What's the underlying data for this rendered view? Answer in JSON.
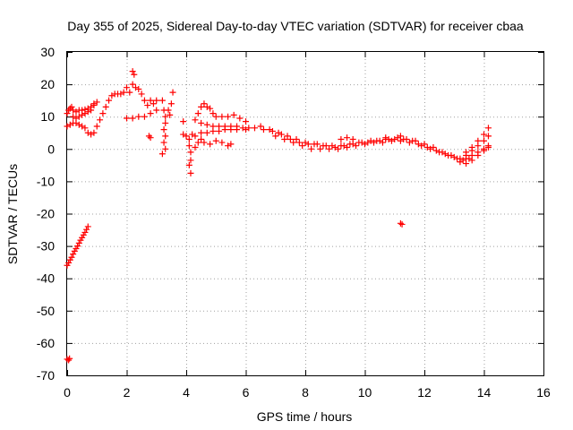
{
  "chart_data": {
    "type": "scatter",
    "title": "Day 355 of 2025, Sidereal Day-to-day VTEC variation (SDTVAR) for receiver cbaa",
    "xlabel": "GPS time / hours",
    "ylabel": "SDTVAR / TECUs",
    "xlim": [
      0,
      16
    ],
    "ylim": [
      -70,
      30
    ],
    "xticks": [
      "0",
      "2",
      "4",
      "6",
      "8",
      "10",
      "12",
      "14",
      "16"
    ],
    "yticks": [
      "30",
      "20",
      "10",
      "0",
      "-10",
      "-20",
      "-30",
      "-40",
      "-50",
      "-60",
      "-70"
    ],
    "grid": true,
    "marker": "plus",
    "color": "#ff0000",
    "series": [
      {
        "name": "SDTVAR",
        "points": [
          [
            0.0,
            -65.0
          ],
          [
            0.05,
            -65.3
          ],
          [
            0.08,
            -64.8
          ],
          [
            0.0,
            -36.0
          ],
          [
            0.05,
            -35.2
          ],
          [
            0.1,
            -34.3
          ],
          [
            0.15,
            -33.5
          ],
          [
            0.2,
            -32.5
          ],
          [
            0.25,
            -31.6
          ],
          [
            0.3,
            -30.8
          ],
          [
            0.35,
            -30.0
          ],
          [
            0.4,
            -29.1
          ],
          [
            0.45,
            -28.2
          ],
          [
            0.5,
            -27.4
          ],
          [
            0.55,
            -26.6
          ],
          [
            0.6,
            -25.8
          ],
          [
            0.65,
            -24.9
          ],
          [
            0.7,
            -24.0
          ],
          [
            0.0,
            11.0
          ],
          [
            0.05,
            12.0
          ],
          [
            0.1,
            12.5
          ],
          [
            0.15,
            13.0
          ],
          [
            0.2,
            12.0
          ],
          [
            0.3,
            11.5
          ],
          [
            0.4,
            12.0
          ],
          [
            0.5,
            12.0
          ],
          [
            0.6,
            12.2
          ],
          [
            0.7,
            12.5
          ],
          [
            0.8,
            13.0
          ],
          [
            0.9,
            14.0
          ],
          [
            1.0,
            14.5
          ],
          [
            0.0,
            7.0
          ],
          [
            0.1,
            7.5
          ],
          [
            0.2,
            8.0
          ],
          [
            0.3,
            8.0
          ],
          [
            0.4,
            7.5
          ],
          [
            0.5,
            7.0
          ],
          [
            0.6,
            6.5
          ],
          [
            0.7,
            5.0
          ],
          [
            0.8,
            4.5
          ],
          [
            0.9,
            5.0
          ],
          [
            1.0,
            7.0
          ],
          [
            1.1,
            9.0
          ],
          [
            1.2,
            11.0
          ],
          [
            1.3,
            13.0
          ],
          [
            1.4,
            15.0
          ],
          [
            1.5,
            16.5
          ],
          [
            1.6,
            17.0
          ],
          [
            1.7,
            17.0
          ],
          [
            1.8,
            17.0
          ],
          [
            1.9,
            17.5
          ],
          [
            0.2,
            10.0
          ],
          [
            0.3,
            9.5
          ],
          [
            0.4,
            10.0
          ],
          [
            0.5,
            10.5
          ],
          [
            0.6,
            11.0
          ],
          [
            0.7,
            11.5
          ],
          [
            0.8,
            12.0
          ],
          [
            0.9,
            13.5
          ],
          [
            2.0,
            19.0
          ],
          [
            2.1,
            17.5
          ],
          [
            2.2,
            20.0
          ],
          [
            2.2,
            24.0
          ],
          [
            2.25,
            23.0
          ],
          [
            2.3,
            19.0
          ],
          [
            2.4,
            18.5
          ],
          [
            2.5,
            17.0
          ],
          [
            2.6,
            15.0
          ],
          [
            2.7,
            13.5
          ],
          [
            2.8,
            15.0
          ],
          [
            2.9,
            14.0
          ],
          [
            3.0,
            15.0
          ],
          [
            2.0,
            9.5
          ],
          [
            2.2,
            9.5
          ],
          [
            2.4,
            10.0
          ],
          [
            2.6,
            10.0
          ],
          [
            2.8,
            11.0
          ],
          [
            3.0,
            12.0
          ],
          [
            2.75,
            4.0
          ],
          [
            2.8,
            3.5
          ],
          [
            3.2,
            15.0
          ],
          [
            3.25,
            12.0
          ],
          [
            3.3,
            10.0
          ],
          [
            3.3,
            8.0
          ],
          [
            3.25,
            6.0
          ],
          [
            3.3,
            4.0
          ],
          [
            3.25,
            2.0
          ],
          [
            3.3,
            0.0
          ],
          [
            3.2,
            -1.5
          ],
          [
            3.4,
            12.0
          ],
          [
            3.5,
            14.0
          ],
          [
            3.55,
            17.5
          ],
          [
            3.45,
            10.5
          ],
          [
            3.9,
            8.5
          ],
          [
            3.9,
            4.5
          ],
          [
            4.0,
            4.0
          ],
          [
            4.1,
            3.0
          ],
          [
            4.1,
            1.0
          ],
          [
            4.15,
            -1.0
          ],
          [
            4.15,
            -3.5
          ],
          [
            4.1,
            -5.0
          ],
          [
            4.15,
            -7.5
          ],
          [
            4.2,
            4.5
          ],
          [
            4.3,
            9.0
          ],
          [
            4.4,
            11.0
          ],
          [
            4.5,
            13.0
          ],
          [
            4.6,
            14.0
          ],
          [
            4.7,
            13.0
          ],
          [
            4.8,
            12.5
          ],
          [
            4.9,
            11.0
          ],
          [
            5.0,
            10.0
          ],
          [
            5.2,
            10.0
          ],
          [
            5.4,
            10.0
          ],
          [
            5.6,
            10.5
          ],
          [
            5.8,
            9.5
          ],
          [
            6.0,
            8.5
          ],
          [
            4.3,
            4.0
          ],
          [
            4.5,
            5.0
          ],
          [
            4.7,
            5.0
          ],
          [
            4.9,
            5.5
          ],
          [
            5.1,
            5.5
          ],
          [
            5.3,
            6.0
          ],
          [
            5.5,
            6.0
          ],
          [
            5.7,
            6.0
          ],
          [
            5.9,
            6.5
          ],
          [
            6.1,
            6.5
          ],
          [
            4.5,
            8.0
          ],
          [
            4.7,
            7.5
          ],
          [
            4.9,
            7.0
          ],
          [
            5.1,
            7.0
          ],
          [
            5.3,
            7.0
          ],
          [
            5.5,
            7.0
          ],
          [
            5.7,
            7.0
          ],
          [
            4.3,
            0.5
          ],
          [
            4.4,
            2.0
          ],
          [
            4.5,
            3.0
          ],
          [
            4.6,
            2.0
          ],
          [
            4.8,
            1.5
          ],
          [
            5.0,
            2.5
          ],
          [
            5.2,
            2.0
          ],
          [
            5.4,
            1.0
          ],
          [
            5.5,
            1.5
          ],
          [
            6.0,
            6.0
          ],
          [
            6.3,
            6.5
          ],
          [
            6.6,
            6.0
          ],
          [
            6.9,
            5.5
          ],
          [
            7.2,
            4.5
          ],
          [
            7.5,
            3.0
          ],
          [
            7.8,
            2.0
          ],
          [
            8.1,
            1.5
          ],
          [
            8.4,
            1.5
          ],
          [
            8.7,
            1.0
          ],
          [
            9.0,
            0.5
          ],
          [
            9.3,
            1.0
          ],
          [
            9.6,
            1.5
          ],
          [
            9.9,
            2.0
          ],
          [
            10.2,
            2.5
          ],
          [
            10.5,
            2.5
          ],
          [
            10.8,
            3.0
          ],
          [
            11.1,
            3.5
          ],
          [
            11.4,
            3.0
          ],
          [
            11.7,
            2.5
          ],
          [
            12.0,
            1.5
          ],
          [
            12.3,
            0.5
          ],
          [
            12.6,
            -1.0
          ],
          [
            12.9,
            -2.0
          ],
          [
            13.2,
            -3.0
          ],
          [
            13.5,
            -3.0
          ],
          [
            6.5,
            7.0
          ],
          [
            6.8,
            6.0
          ],
          [
            7.1,
            5.0
          ],
          [
            7.4,
            4.0
          ],
          [
            7.7,
            3.0
          ],
          [
            8.0,
            2.0
          ],
          [
            8.3,
            1.5
          ],
          [
            8.6,
            1.0
          ],
          [
            8.9,
            1.0
          ],
          [
            9.2,
            1.0
          ],
          [
            9.5,
            1.5
          ],
          [
            9.8,
            2.0
          ],
          [
            10.1,
            2.0
          ],
          [
            10.4,
            2.5
          ],
          [
            10.7,
            3.0
          ],
          [
            11.0,
            3.0
          ],
          [
            11.3,
            3.0
          ],
          [
            11.6,
            2.5
          ],
          [
            11.9,
            1.0
          ],
          [
            12.2,
            0.0
          ],
          [
            12.5,
            -1.0
          ],
          [
            12.8,
            -2.0
          ],
          [
            13.1,
            -3.0
          ],
          [
            7.0,
            4.0
          ],
          [
            7.3,
            3.0
          ],
          [
            7.6,
            2.0
          ],
          [
            7.9,
            1.0
          ],
          [
            8.2,
            0.0
          ],
          [
            8.5,
            0.0
          ],
          [
            8.8,
            0.0
          ],
          [
            9.1,
            0.0
          ],
          [
            9.4,
            0.5
          ],
          [
            9.7,
            1.0
          ],
          [
            10.0,
            1.5
          ],
          [
            10.3,
            2.0
          ],
          [
            10.6,
            2.0
          ],
          [
            10.9,
            2.5
          ],
          [
            11.2,
            2.5
          ],
          [
            11.5,
            2.0
          ],
          [
            11.8,
            1.5
          ],
          [
            12.1,
            0.5
          ],
          [
            12.4,
            -0.5
          ],
          [
            12.7,
            -1.5
          ],
          [
            13.0,
            -2.5
          ],
          [
            13.3,
            -3.5
          ],
          [
            9.2,
            3.0
          ],
          [
            9.4,
            3.5
          ],
          [
            9.6,
            3.0
          ],
          [
            10.7,
            3.5
          ],
          [
            11.2,
            4.0
          ],
          [
            11.2,
            -23.0
          ],
          [
            11.25,
            -23.3
          ],
          [
            13.4,
            -1.0
          ],
          [
            13.6,
            0.5
          ],
          [
            13.8,
            2.5
          ],
          [
            14.0,
            4.5
          ],
          [
            14.15,
            6.5
          ],
          [
            13.4,
            -2.0
          ],
          [
            13.6,
            -0.5
          ],
          [
            13.8,
            1.0
          ],
          [
            14.0,
            2.5
          ],
          [
            14.15,
            4.0
          ],
          [
            13.4,
            -3.0
          ],
          [
            13.6,
            -2.0
          ],
          [
            13.8,
            -1.0
          ],
          [
            14.0,
            0.0
          ],
          [
            14.15,
            1.0
          ],
          [
            13.2,
            -4.0
          ],
          [
            13.4,
            -4.5
          ],
          [
            13.6,
            -3.5
          ],
          [
            13.8,
            -2.0
          ],
          [
            14.0,
            -0.5
          ],
          [
            14.15,
            0.5
          ]
        ]
      }
    ]
  }
}
